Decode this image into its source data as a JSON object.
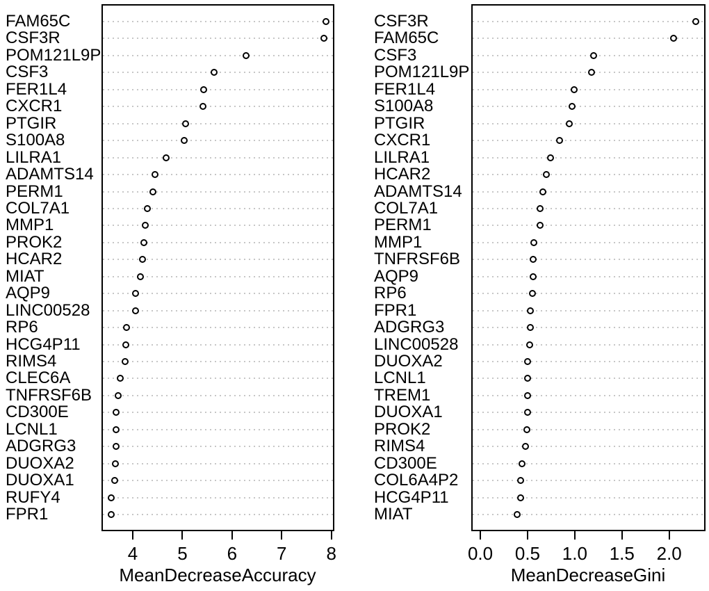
{
  "figure": {
    "background": "#ffffff",
    "frame_color": "#000000",
    "gridline_color": "#c6c6c6",
    "point_color": "#000000"
  },
  "chart_data": [
    {
      "type": "scatter",
      "variant": "dotchart",
      "title": "",
      "xlabel": "MeanDecreaseAccuracy",
      "ylabel": "",
      "legend": "none",
      "grid": "dotted-horizontal-per-category",
      "point_style": "open-circle",
      "xlim": [
        3.37,
        8.06
      ],
      "xticks": [
        4,
        5,
        6,
        7,
        8
      ],
      "xtick_labels": [
        "4",
        "5",
        "6",
        "7",
        "8"
      ],
      "categories": [
        "FAM65C",
        "CSF3R",
        "POM121L9P",
        "CSF3",
        "FER1L4",
        "CXCR1",
        "PTGIR",
        "S100A8",
        "LILRA1",
        "ADAMTS14",
        "PERM1",
        "COL7A1",
        "MMP1",
        "PROK2",
        "HCAR2",
        "MIAT",
        "AQP9",
        "LINC00528",
        "RP6",
        "HCG4P11",
        "RIMS4",
        "CLEC6A",
        "TNFRSF6B",
        "CD300E",
        "LCNL1",
        "ADGRG3",
        "DUOXA2",
        "DUOXA1",
        "RUFY4",
        "FPR1"
      ],
      "values": [
        7.89,
        7.85,
        6.28,
        5.64,
        5.43,
        5.41,
        5.07,
        5.03,
        4.67,
        4.45,
        4.41,
        4.3,
        4.25,
        4.22,
        4.2,
        4.15,
        4.05,
        4.05,
        3.87,
        3.86,
        3.85,
        3.75,
        3.7,
        3.67,
        3.66,
        3.66,
        3.65,
        3.63,
        3.57,
        3.56
      ]
    },
    {
      "type": "scatter",
      "variant": "dotchart",
      "title": "",
      "xlabel": "MeanDecreaseGini",
      "ylabel": "",
      "legend": "none",
      "grid": "dotted-horizontal-per-category",
      "point_style": "open-circle",
      "xlim": [
        -0.096,
        2.385
      ],
      "xticks": [
        0.0,
        0.5,
        1.0,
        1.5,
        2.0
      ],
      "xtick_labels": [
        "0.0",
        "0.5",
        "1.0",
        "1.5",
        "2.0"
      ],
      "categories": [
        "CSF3R",
        "FAM65C",
        "CSF3",
        "POM121L9P",
        "FER1L4",
        "S100A8",
        "PTGIR",
        "CXCR1",
        "LILRA1",
        "HCAR2",
        "ADAMTS14",
        "COL7A1",
        "PERM1",
        "MMP1",
        "TNFRSF6B",
        "AQP9",
        "RP6",
        "FPR1",
        "ADGRG3",
        "LINC00528",
        "DUOXA2",
        "LCNL1",
        "TREM1",
        "DUOXA1",
        "PROK2",
        "RIMS4",
        "CD300E",
        "COL6A4P2",
        "HCG4P11",
        "MIAT"
      ],
      "values": [
        2.28,
        2.05,
        1.2,
        1.18,
        0.99,
        0.97,
        0.94,
        0.84,
        0.74,
        0.7,
        0.66,
        0.63,
        0.63,
        0.57,
        0.56,
        0.56,
        0.55,
        0.53,
        0.53,
        0.52,
        0.5,
        0.5,
        0.5,
        0.5,
        0.49,
        0.48,
        0.44,
        0.43,
        0.43,
        0.39
      ]
    }
  ]
}
